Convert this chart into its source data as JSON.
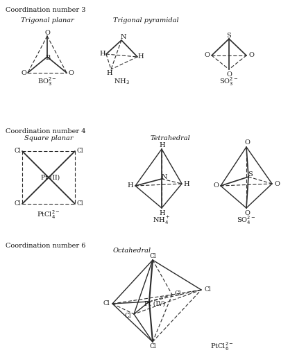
{
  "bg_color": "#ffffff",
  "line_color": "#2a2a2a",
  "title_cn3": "Coordination number 3",
  "title_cn4": "Coordination number 4",
  "title_cn6": "Coordination number 6",
  "label_trigonal_planar": "Trigonal planar",
  "label_trigonal_pyramidal": "Trigonal pyramidal",
  "label_square_planar": "Square planar",
  "label_tetrahedral": "Tetrahedral",
  "label_octahedral": "Octahedral",
  "formula_bo3": "BO$_3^{2-}$",
  "formula_nh3": "NH$_3$",
  "formula_so3": "SO$_3^{2-}$",
  "formula_ptcl4_2": "PtCl$_4^{2-}$",
  "formula_nh4": "NH$_4^+$",
  "formula_so4": "SO$_4^{2-}$",
  "formula_ptcl6": "PtCl$_6^{2-}$"
}
